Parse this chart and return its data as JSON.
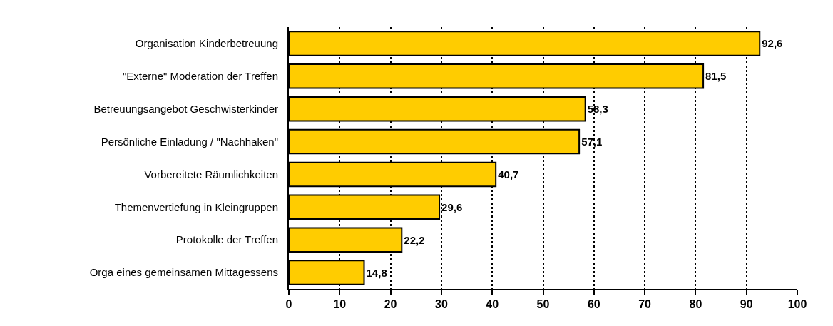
{
  "chart_data": {
    "type": "bar",
    "orientation": "horizontal",
    "categories": [
      "Organisation Kinderbetreuung",
      "\"Externe\" Moderation der Treffen",
      "Betreuungsangebot Geschwisterkinder",
      "Persönliche Einladung / \"Nachhaken\"",
      "Vorbereitete Räumlichkeiten",
      "Themenvertiefung in Kleingruppen",
      "Protokolle der Treffen",
      "Orga eines gemeinsamen Mittagessens"
    ],
    "values": [
      92.6,
      81.5,
      58.3,
      57.1,
      40.7,
      29.6,
      22.2,
      14.8
    ],
    "value_labels": [
      "92,6",
      "81,5",
      "58,3",
      "57,1",
      "40,7",
      "29,6",
      "22,2",
      "14,8"
    ],
    "color": "#ffcc00",
    "xlim": [
      0,
      100
    ],
    "xticks": [
      0,
      10,
      20,
      30,
      40,
      50,
      60,
      70,
      80,
      90,
      100
    ],
    "grid": "x"
  }
}
